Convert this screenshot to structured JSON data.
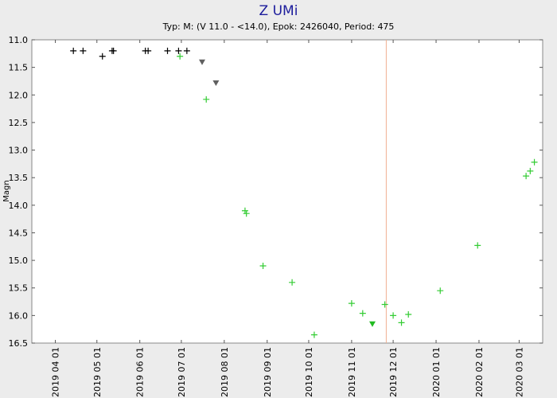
{
  "chart_data": {
    "type": "scatter",
    "title": "Z UMi",
    "subtitle": "Typ: M: (V 11.0 - <14.0), Epok: 2426040, Period: 475",
    "y_label": "Magn",
    "y_inverted": true,
    "ylim": [
      11.0,
      16.5
    ],
    "yticks": [
      {
        "value": 11,
        "label": "11.0"
      },
      11.5,
      {
        "value": 12,
        "label": "12.0"
      },
      12.5,
      {
        "value": 13,
        "label": "13.0"
      },
      13.5,
      {
        "value": 14,
        "label": "14.0"
      },
      14.5,
      {
        "value": 15,
        "label": "15.0"
      },
      15.5,
      {
        "value": 16,
        "label": "16.0"
      },
      16.5
    ],
    "xlim": [
      "2019 03 15",
      "2020 03 18"
    ],
    "xticks": [
      "2019 04 01",
      "2019 05 01",
      "2019 06 01",
      "2019 07 01",
      "2019 08 01",
      "2019 09 01",
      "2019 10 01",
      "2019 11 01",
      "2019 12 01",
      "2020 01 01",
      "2020 02 01",
      "2020 03 01"
    ],
    "marker_line": {
      "x": "2019 11 26",
      "color": "#f0b090"
    },
    "series": [
      {
        "color": "#000000",
        "marker": "plus",
        "x": [
          "2019 04 14",
          "2019 04 21",
          "2019 05 05",
          "2019 05 12",
          "2019 05 13",
          "2019 06 05",
          "2019 06 07",
          "2019 06 21",
          "2019 06 29",
          "2019 07 05"
        ],
        "values": [
          11.2,
          11.2,
          11.3,
          11.2,
          11.2,
          11.2,
          11.2,
          11.2,
          11.2,
          11.2
        ]
      },
      {
        "color": "#33cc33",
        "marker": "plus",
        "x": [
          "2019 06 30",
          "2019 07 19",
          "2019 08 16",
          "2019 08 17",
          "2019 08 29",
          "2019 09 19",
          "2019 10 05",
          "2019 11 01",
          "2019 11 09",
          "2019 11 25",
          "2019 12 01",
          "2019 12 07",
          "2019 12 12",
          "2020 01 04",
          "2020 01 31",
          "2020 03 06",
          "2020 03 09",
          "2020 03 12"
        ],
        "values": [
          11.3,
          12.08,
          14.1,
          14.15,
          15.1,
          15.4,
          16.35,
          15.78,
          15.96,
          15.8,
          16.0,
          16.13,
          15.98,
          15.55,
          14.73,
          13.47,
          13.38,
          13.22
        ]
      },
      {
        "color": "#606060",
        "marker": "triangle-down",
        "x": [
          "2019 07 16",
          "2019 07 26"
        ],
        "values": [
          11.4,
          11.78
        ]
      },
      {
        "color": "#22bb22",
        "marker": "triangle-down",
        "x": [
          "2019 11 16"
        ],
        "values": [
          16.15
        ]
      }
    ]
  }
}
